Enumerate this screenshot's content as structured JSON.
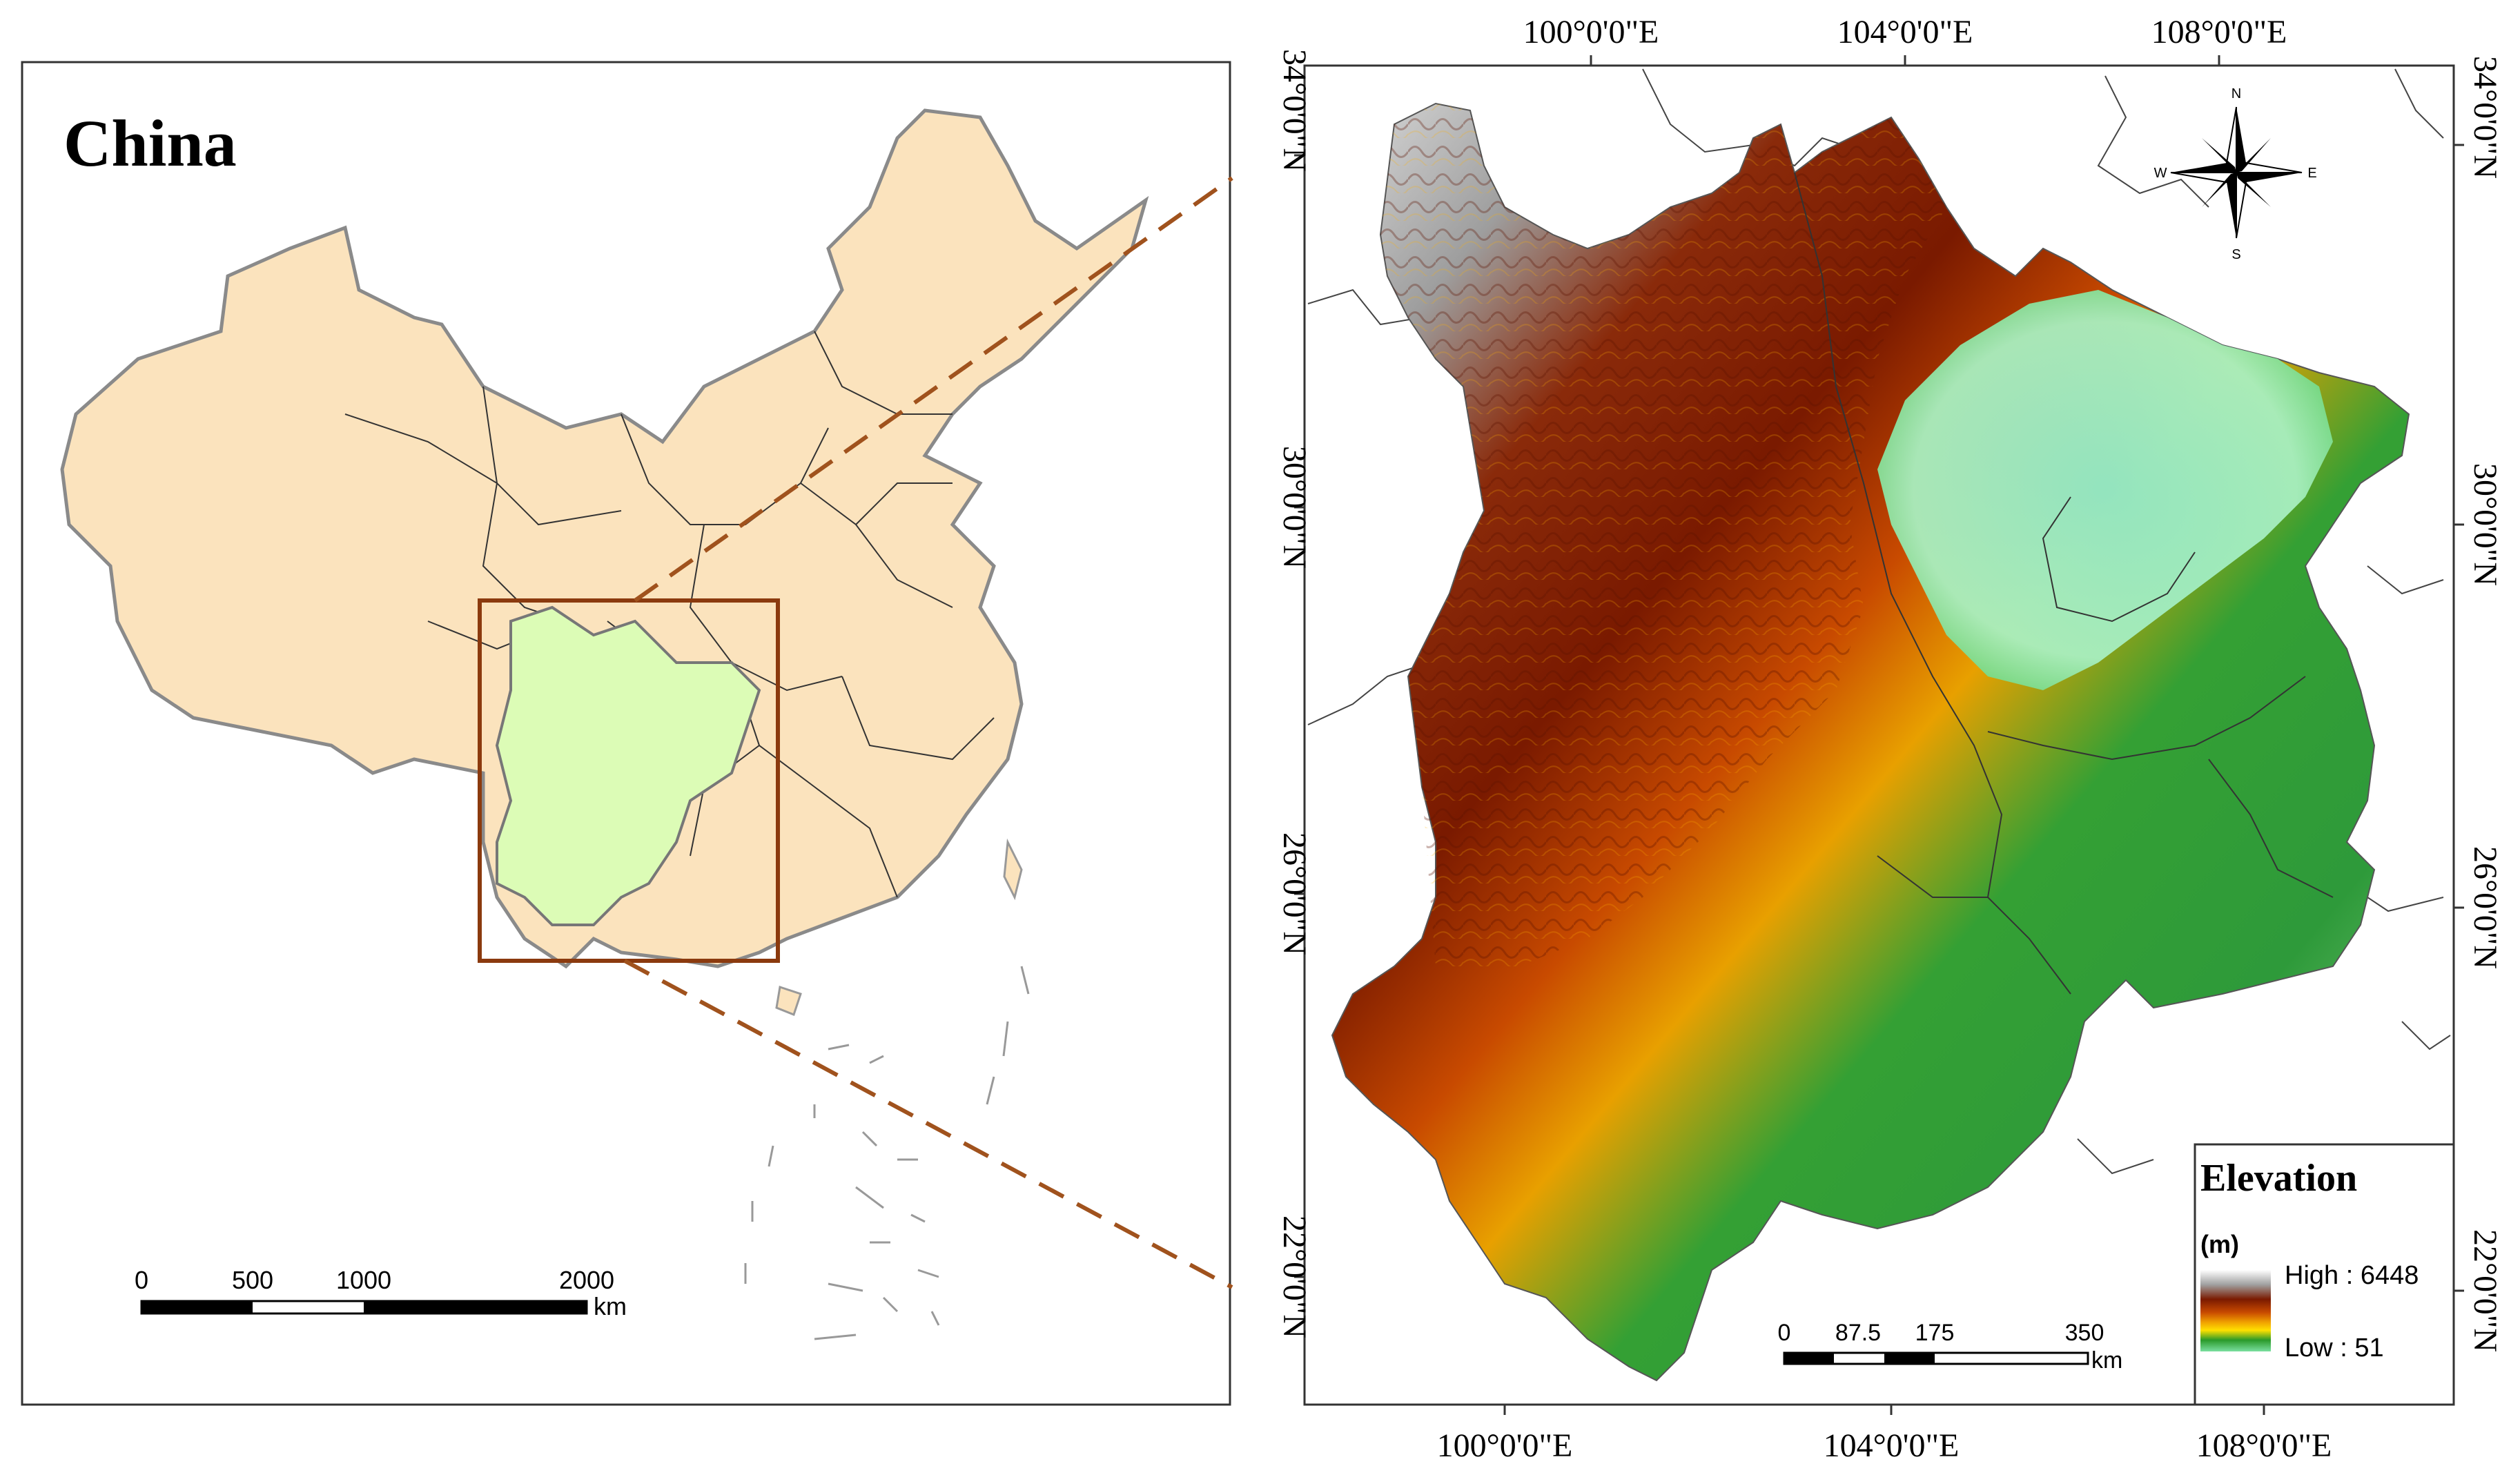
{
  "left_map": {
    "title": "China",
    "scalebar": {
      "ticks": [
        "0",
        "500",
        "1000",
        "2000"
      ],
      "unit": "km"
    }
  },
  "right_map": {
    "top_lon_labels": [
      "100°0'0\"E",
      "104°0'0\"E",
      "108°0'0\"E"
    ],
    "bottom_lon_labels": [
      "100°0'0\"E",
      "104°0'0\"E",
      "108°0'0\"E"
    ],
    "left_lat_labels": [
      "34°0'0\"N",
      "30°0'0\"N",
      "26°0'0\"N",
      "22°0'0\"N"
    ],
    "right_lat_labels": [
      "34°0'0\"N",
      "30°0'0\"N",
      "26°0'0\"N",
      "22°0'0\"N"
    ],
    "compass": {
      "n": "N",
      "s": "S",
      "e": "E",
      "w": "W"
    },
    "scalebar": {
      "ticks": [
        "0",
        "87.5",
        "175",
        "350"
      ],
      "unit": "km"
    },
    "legend": {
      "title": "Elevation",
      "unit": "(m)",
      "high": "High : 6448",
      "low": "Low : 51",
      "ramp_colors": [
        "#ffffff",
        "#a0a0a0",
        "#7a1a00",
        "#c84a00",
        "#f0a000",
        "#ffe000",
        "#2a9a2a",
        "#7adfa0"
      ]
    }
  },
  "colors": {
    "china_fill": "#fbe3bd",
    "study_area_fill": "#dcfcb6",
    "extent_box": "#8b3a0e",
    "dashed_line": "#a0521d"
  }
}
